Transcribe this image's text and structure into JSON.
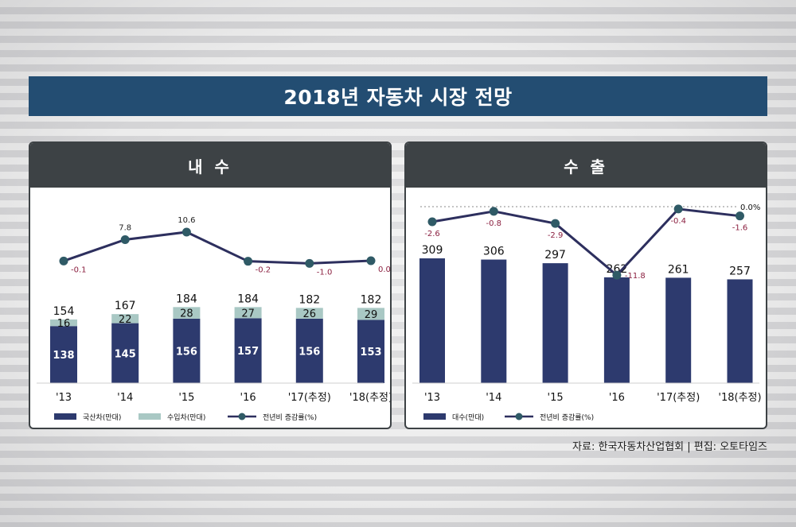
{
  "title": "2018년 자동차 시장 전망",
  "source": "자료: 한국자동차산업협회 | 편집: 오토타임즈",
  "colors": {
    "title_bg": "#234d72",
    "header_bg": "#3d4245",
    "domestic_bar": "#2d3a6e",
    "import_bar": "#a9c8c4",
    "line": "#2d2f5e",
    "marker": "#2f5a66",
    "change_label": "#8b2040"
  },
  "chart_data": [
    {
      "type": "bar",
      "title": "내 수",
      "stacked": true,
      "categories": [
        "'13",
        "'14",
        "'15",
        "'16",
        "'17(추정)",
        "'18(추정)"
      ],
      "series": [
        {
          "name": "국산차(만대)",
          "type": "bar",
          "values": [
            138,
            145,
            156,
            157,
            156,
            153
          ]
        },
        {
          "name": "수입차(만대)",
          "type": "bar",
          "values": [
            16,
            22,
            28,
            27,
            26,
            29
          ]
        },
        {
          "name": "전년비 증감률(%)",
          "type": "line",
          "values": [
            -0.1,
            7.8,
            10.6,
            -0.2,
            -1.0,
            0.0
          ],
          "labels": [
            "-0.1",
            "7.8",
            "10.6",
            "-0.2",
            "-1.0",
            "0.0"
          ]
        }
      ],
      "totals": [
        154,
        167,
        184,
        184,
        182,
        182
      ],
      "legend_position": "bottom"
    },
    {
      "type": "bar",
      "title": "수 출",
      "categories": [
        "'13",
        "'14",
        "'15",
        "'16",
        "'17(추정)",
        "'18(추정)"
      ],
      "series": [
        {
          "name": "대수(만대)",
          "type": "bar",
          "values": [
            309,
            306,
            297,
            262,
            261,
            257
          ]
        },
        {
          "name": "전년비 증감률(%)",
          "type": "line",
          "values": [
            -2.6,
            -0.8,
            -2.9,
            -11.8,
            -0.4,
            -1.6
          ],
          "labels": [
            "-2.6",
            "-0.8",
            "-2.9",
            "-11.8",
            "-0.4",
            "-1.6"
          ]
        }
      ],
      "reference_line": {
        "value": 0.0,
        "label": "0.0%"
      },
      "legend_position": "bottom"
    }
  ]
}
